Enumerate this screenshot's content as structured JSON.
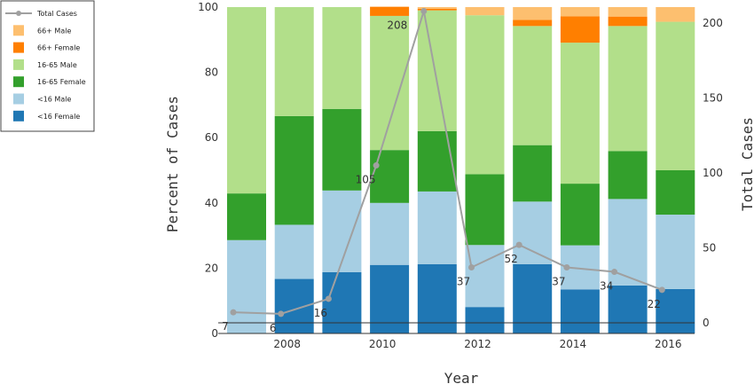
{
  "chart_data": {
    "type": "bar",
    "stacked": true,
    "x": [
      2007,
      2008,
      2009,
      2010,
      2011,
      2012,
      2013,
      2014,
      2015,
      2016
    ],
    "series": [
      {
        "name": "<16 Female",
        "color": "#1f77b4",
        "values": [
          0,
          16.7,
          18.8,
          21.0,
          21.2,
          8.1,
          21.2,
          13.5,
          14.7,
          13.6
        ]
      },
      {
        "name": "<16 Male",
        "color": "#a6cee3",
        "values": [
          28.6,
          16.6,
          25.0,
          19.0,
          22.3,
          19.0,
          19.2,
          13.5,
          26.5,
          22.8
        ]
      },
      {
        "name": "16-65 Female",
        "color": "#33a02c",
        "values": [
          14.3,
          33.3,
          25.0,
          16.2,
          18.5,
          21.7,
          17.3,
          18.9,
          14.7,
          13.6
        ]
      },
      {
        "name": "16-65 Male",
        "color": "#b2df8a",
        "values": [
          57.1,
          33.4,
          31.2,
          41.1,
          37.0,
          48.7,
          36.5,
          43.2,
          38.3,
          45.5
        ]
      },
      {
        "name": "66+ Female",
        "color": "#ff7f00",
        "values": [
          0,
          0,
          0,
          2.8,
          0.5,
          0,
          1.9,
          8.1,
          2.9,
          0
        ]
      },
      {
        "name": "66+ Male",
        "color": "#fdbf6f",
        "values": [
          0,
          0,
          0,
          0,
          0.5,
          2.5,
          3.9,
          2.8,
          2.9,
          4.5
        ]
      }
    ],
    "line": {
      "name": "Total Cases",
      "color": "#a0a0a0",
      "values": [
        7,
        6,
        16,
        105,
        208,
        37,
        52,
        37,
        34,
        22
      ]
    },
    "data_labels": [
      "7",
      "6",
      "16",
      "105",
      "208",
      "37",
      "52",
      "37",
      "34",
      "22"
    ],
    "xlabel": "Year",
    "ylabel": "Percent of Cases",
    "y2label": "Total Cases",
    "xticks": [
      "2008",
      "2010",
      "2012",
      "2014",
      "2016"
    ],
    "yticks": [
      "0",
      "20",
      "40",
      "60",
      "80",
      "100"
    ],
    "y2ticks": [
      "0",
      "50",
      "100",
      "150",
      "200"
    ],
    "ylim": [
      0,
      100
    ],
    "y2lim": [
      0,
      217
    ],
    "legend_position": "top-left",
    "legend": [
      "Total Cases",
      "66+ Male",
      "66+ Female",
      "16-65 Male",
      "16-65 Female",
      "<16 Male",
      "<16 Female"
    ]
  }
}
